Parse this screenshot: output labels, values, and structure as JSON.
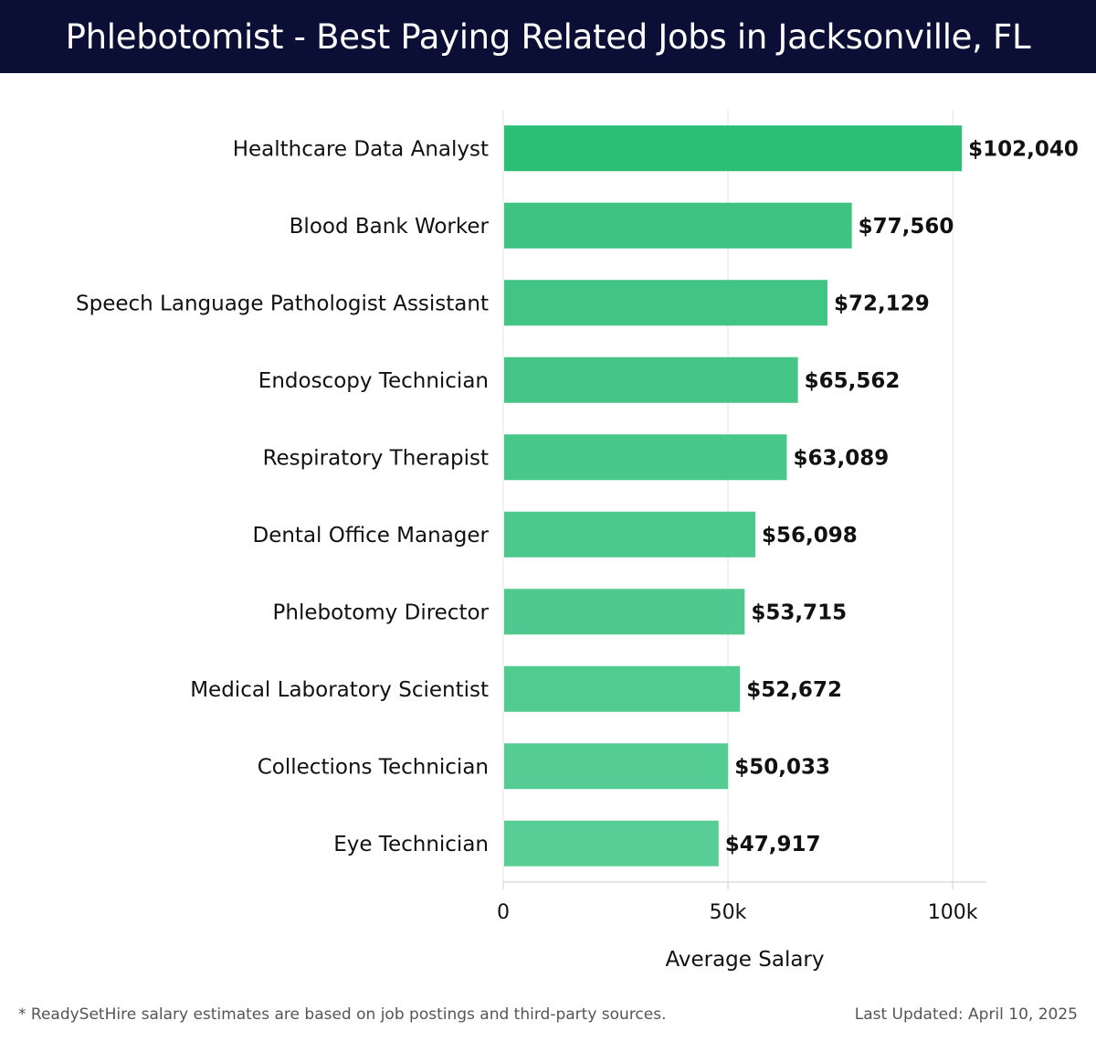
{
  "header": {
    "title": "Phlebotomist - Best Paying Related Jobs in Jacksonville, FL"
  },
  "chart_data": {
    "type": "bar",
    "orientation": "horizontal",
    "categories": [
      "Healthcare Data Analyst",
      "Blood Bank Worker",
      "Speech Language Pathologist Assistant",
      "Endoscopy Technician",
      "Respiratory Therapist",
      "Dental Office Manager",
      "Phlebotomy Director",
      "Medical Laboratory Scientist",
      "Collections Technician",
      "Eye Technician"
    ],
    "values": [
      102040,
      77560,
      72129,
      65562,
      63089,
      56098,
      53715,
      52672,
      50033,
      47917
    ],
    "value_labels": [
      "$102,040",
      "$77,560",
      "$72,129",
      "$65,562",
      "$63,089",
      "$56,098",
      "$53,715",
      "$52,672",
      "$50,033",
      "$47,917"
    ],
    "xlabel": "Average Salary",
    "ylabel": "",
    "xlim": [
      0,
      107500
    ],
    "xticks": [
      0,
      50000,
      100000
    ],
    "xtick_labels": [
      "0",
      "50k",
      "100k"
    ],
    "grid": true,
    "colors": {
      "top_bar": "#2bbf76",
      "bar_dark": "#3fc383",
      "bar_light": "#58cd96",
      "grid": "#e3e3e3",
      "axis": "#cccccc",
      "text": "#111111"
    }
  },
  "footer": {
    "note": "* ReadySetHire salary estimates are based on job postings and third-party sources.",
    "updated": "Last Updated: April 10, 2025"
  }
}
